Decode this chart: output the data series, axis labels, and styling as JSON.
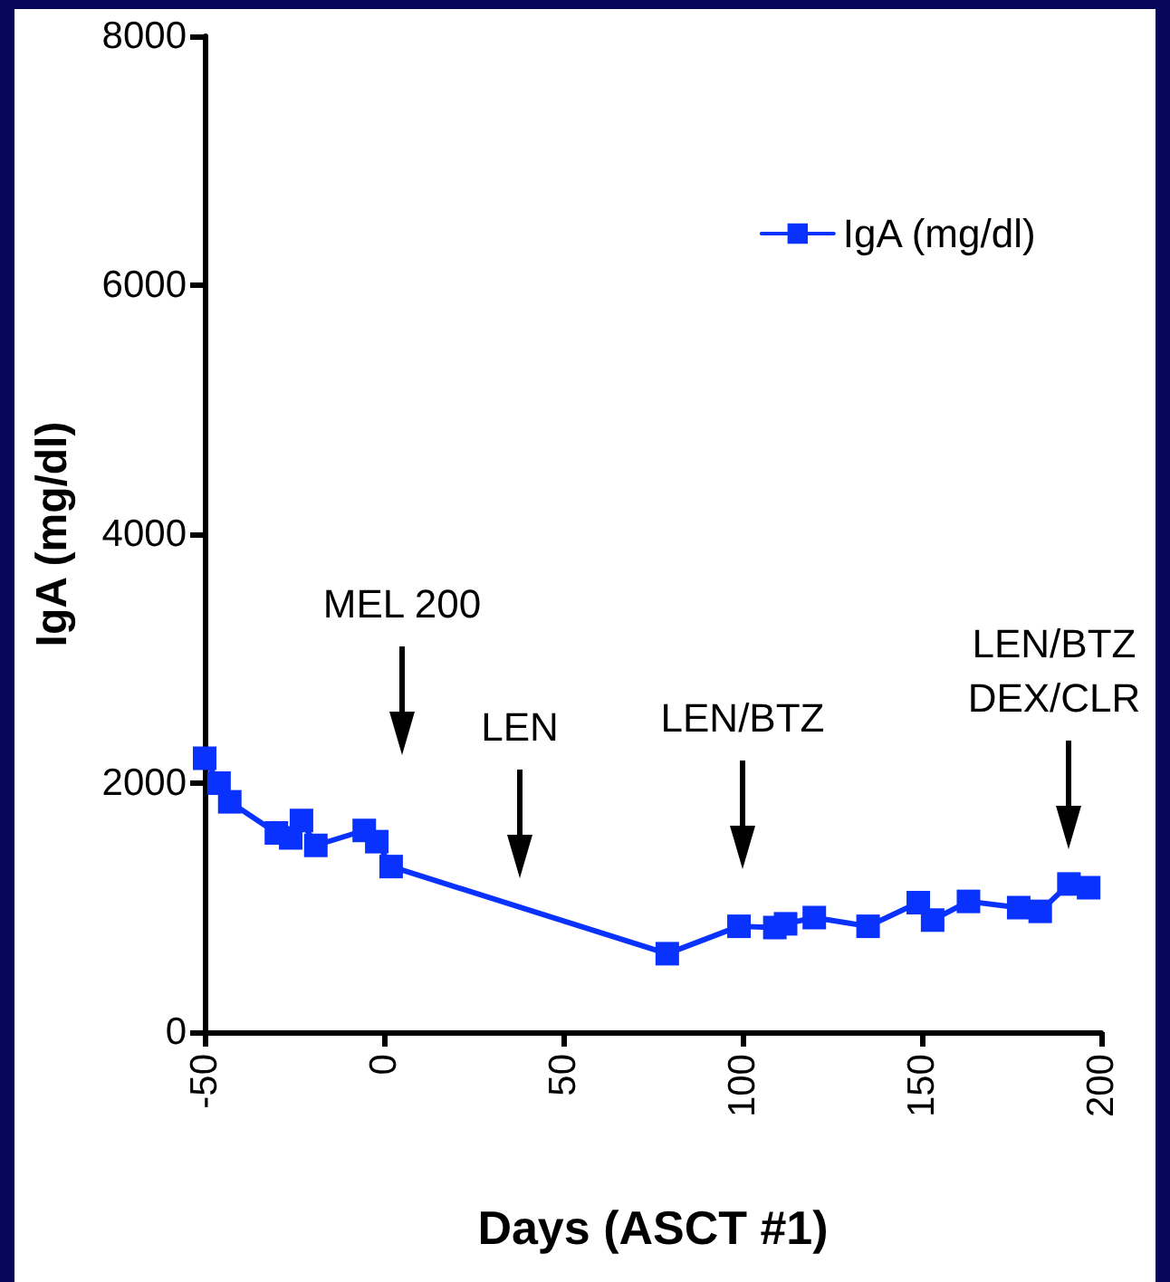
{
  "chart_data": {
    "type": "line",
    "xlabel": "Days (ASCT #1)",
    "ylabel": "IgA (mg/dl)",
    "x": [
      -50,
      -46,
      -43,
      -30,
      -26,
      -23,
      -19,
      -5.5,
      -2,
      2,
      79,
      99,
      109,
      112,
      120,
      135,
      149,
      153,
      163,
      177,
      183,
      191,
      196.5
    ],
    "series": [
      {
        "name": "IgA (mg/dl)",
        "color": "#0a32ff",
        "values": [
          2200,
          2000,
          1850,
          1600,
          1560,
          1700,
          1500,
          1620,
          1530,
          1330,
          630,
          850,
          840,
          870,
          920,
          850,
          1040,
          900,
          1050,
          1000,
          970,
          1190,
          1160
        ]
      }
    ],
    "xlim": [
      -50,
      200
    ],
    "xticks": [
      -50,
      0,
      50,
      100,
      150,
      200
    ],
    "ylim": [
      0,
      8000
    ],
    "yticks": [
      0,
      2000,
      4000,
      6000,
      8000
    ],
    "annotations": [
      "MEL 200",
      "LEN",
      "LEN/BTZ",
      "LEN/BTZ\nDEX/CLR"
    ],
    "legend": "top right",
    "marker": "square",
    "line_style": "solid"
  }
}
